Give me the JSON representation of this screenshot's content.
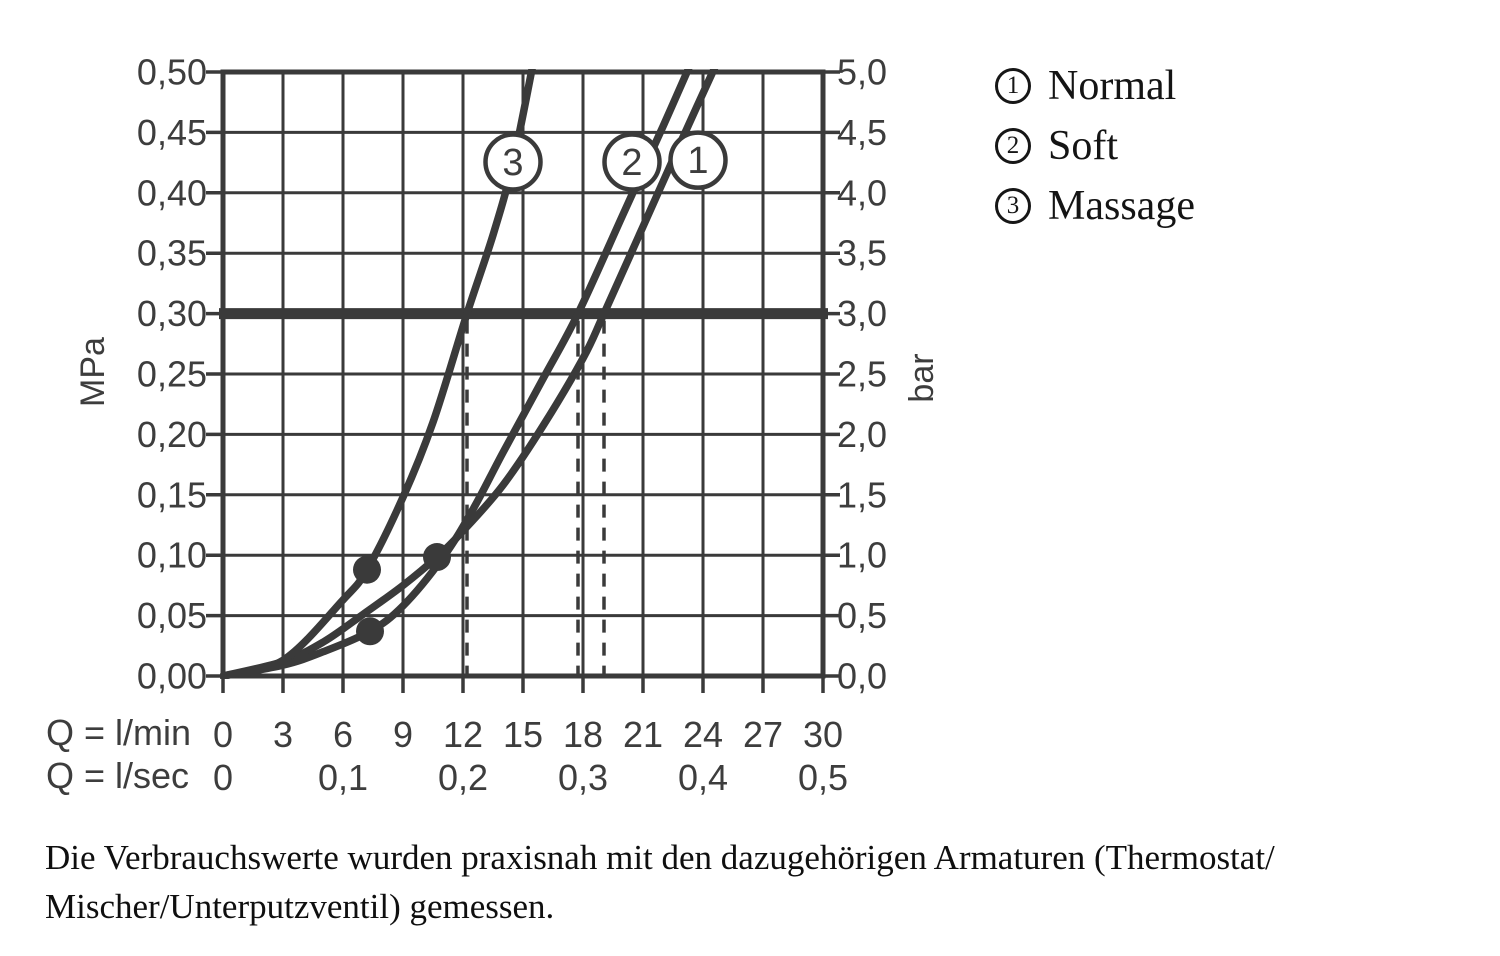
{
  "page": {
    "background": "#ffffff"
  },
  "colors": {
    "stroke": "#3a3a3a",
    "axis_text": "#3d3d3d",
    "body_text": "#0f0f0f",
    "background": "#ffffff"
  },
  "axes": {
    "left_unit": "MPa",
    "right_unit": "bar",
    "flow_min_label": "Q = l/min",
    "flow_sec_label": "Q = l/sec"
  },
  "legend": {
    "items": [
      {
        "number": "1",
        "label": "Normal"
      },
      {
        "number": "2",
        "label": "Soft"
      },
      {
        "number": "3",
        "label": "Massage"
      }
    ]
  },
  "caption": {
    "lines": [
      "Die Verbrauchswerte wurden praxisnah mit den dazugehörigen Armaturen (Thermostat/",
      "Mischer/Unterputzventil) gemessen."
    ]
  },
  "chart_data": {
    "type": "line",
    "title": "",
    "grid": true,
    "x": {
      "unit_primary": "l/min",
      "unit_secondary": "l/sec",
      "range_lmin": [
        0,
        30
      ],
      "ticks_lmin": [
        "0",
        "3",
        "6",
        "9",
        "12",
        "15",
        "18",
        "21",
        "24",
        "27",
        "30"
      ],
      "ticks_lsec": [
        {
          "label": "0",
          "q": 0
        },
        {
          "label": "0,1",
          "q": 6
        },
        {
          "label": "0,2",
          "q": 12
        },
        {
          "label": "0,3",
          "q": 18
        },
        {
          "label": "0,4",
          "q": 24
        },
        {
          "label": "0,5",
          "q": 30
        }
      ]
    },
    "y_left": {
      "unit": "MPa",
      "range": [
        0,
        0.5
      ],
      "ticks": [
        "0,50",
        "0,45",
        "0,40",
        "0,35",
        "0,30",
        "0,25",
        "0,20",
        "0,15",
        "0,10",
        "0,05",
        "0,00"
      ]
    },
    "y_right": {
      "unit": "bar",
      "range": [
        0,
        5
      ],
      "ticks": [
        "5,0",
        "4,5",
        "4,0",
        "3,5",
        "3,0",
        "2,5",
        "2,0",
        "1,5",
        "1,0",
        "0,5",
        "0,0"
      ]
    },
    "reference_line": {
      "mpa": 0.3,
      "bar": 3.0
    },
    "dashed_guides_lmin": [
      12.2,
      17.75,
      19.05
    ],
    "series": [
      {
        "id": "1",
        "name": "Normal",
        "flow_at_3bar_lmin": 19.0,
        "points": [
          [
            0,
            0
          ],
          [
            3,
            0.012
          ],
          [
            5,
            0.028
          ],
          [
            7,
            0.051
          ],
          [
            9,
            0.075
          ],
          [
            10.7,
            0.0985
          ],
          [
            12,
            0.12
          ],
          [
            14,
            0.158
          ],
          [
            16,
            0.207
          ],
          [
            18,
            0.263
          ],
          [
            19.05,
            0.3
          ],
          [
            21,
            0.372
          ],
          [
            23,
            0.446
          ],
          [
            24.9,
            0.515
          ]
        ],
        "marker": {
          "q": 10.7,
          "mpa": 0.0985
        },
        "badge": {
          "q": 23.75,
          "mpa": 0.427
        }
      },
      {
        "id": "2",
        "name": "Soft",
        "flow_at_3bar_lmin": 17.75,
        "points": [
          [
            0,
            0
          ],
          [
            3,
            0.009
          ],
          [
            5,
            0.02
          ],
          [
            7.35,
            0.037
          ],
          [
            9,
            0.058
          ],
          [
            11,
            0.098
          ],
          [
            12.5,
            0.138
          ],
          [
            14,
            0.185
          ],
          [
            16,
            0.246
          ],
          [
            17.75,
            0.3
          ],
          [
            20,
            0.382
          ],
          [
            22,
            0.455
          ],
          [
            23.6,
            0.515
          ]
        ],
        "marker": {
          "q": 7.35,
          "mpa": 0.037
        },
        "badge": {
          "q": 20.45,
          "mpa": 0.4255
        }
      },
      {
        "id": "3",
        "name": "Massage",
        "flow_at_3bar_lmin": 12.2,
        "points": [
          [
            0,
            0
          ],
          [
            3,
            0.013
          ],
          [
            6,
            0.063
          ],
          [
            7.2,
            0.088
          ],
          [
            9,
            0.148
          ],
          [
            10.5,
            0.21
          ],
          [
            12.2,
            0.3
          ],
          [
            13.5,
            0.365
          ],
          [
            14.5,
            0.425
          ],
          [
            15.6,
            0.515
          ]
        ],
        "marker": {
          "q": 7.2,
          "mpa": 0.088
        },
        "badge": {
          "q": 14.5,
          "mpa": 0.4255
        }
      }
    ]
  }
}
